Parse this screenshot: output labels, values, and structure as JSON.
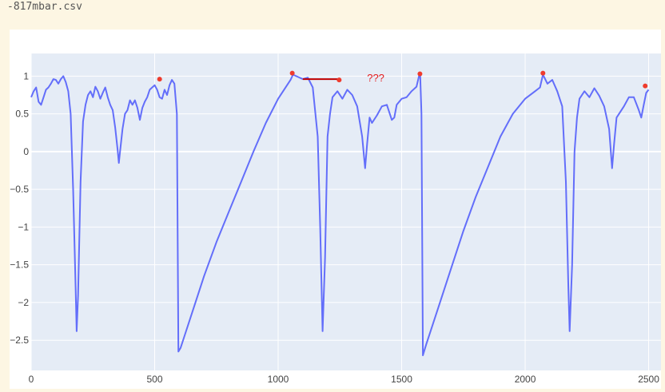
{
  "file": {
    "name": "-817mbar.csv"
  },
  "chart_data": {
    "type": "line",
    "title": "",
    "xlabel": "",
    "ylabel": "",
    "xlim": [
      0,
      2550
    ],
    "ylim": [
      -2.9,
      1.3
    ],
    "x_ticks": [
      0,
      500,
      1000,
      1500,
      2000,
      2500
    ],
    "y_ticks": [
      -2.5,
      -2,
      -1.5,
      -1,
      -0.5,
      0,
      0.5,
      1
    ],
    "grid": true,
    "colors": {
      "line": "#636efa",
      "marker": "#ef3b2c",
      "segment": "#c00000",
      "annotation": "#e31a1c",
      "plot_bg": "#e5ecf6"
    },
    "series": [
      {
        "values": [
          [
            0,
            0.72
          ],
          [
            10,
            0.8
          ],
          [
            20,
            0.85
          ],
          [
            30,
            0.66
          ],
          [
            40,
            0.62
          ],
          [
            50,
            0.72
          ],
          [
            60,
            0.82
          ],
          [
            70,
            0.85
          ],
          [
            80,
            0.9
          ],
          [
            90,
            0.96
          ],
          [
            100,
            0.95
          ],
          [
            110,
            0.9
          ],
          [
            120,
            0.96
          ],
          [
            130,
            1.0
          ],
          [
            140,
            0.92
          ],
          [
            150,
            0.8
          ],
          [
            160,
            0.5
          ],
          [
            170,
            -0.5
          ],
          [
            180,
            -1.8
          ],
          [
            184,
            -2.38
          ],
          [
            190,
            -1.9
          ],
          [
            200,
            -0.4
          ],
          [
            210,
            0.4
          ],
          [
            220,
            0.62
          ],
          [
            230,
            0.75
          ],
          [
            240,
            0.8
          ],
          [
            250,
            0.72
          ],
          [
            260,
            0.86
          ],
          [
            270,
            0.8
          ],
          [
            280,
            0.7
          ],
          [
            290,
            0.78
          ],
          [
            300,
            0.85
          ],
          [
            310,
            0.72
          ],
          [
            320,
            0.62
          ],
          [
            330,
            0.55
          ],
          [
            340,
            0.32
          ],
          [
            350,
            0.02
          ],
          [
            355,
            -0.15
          ],
          [
            360,
            0.0
          ],
          [
            370,
            0.3
          ],
          [
            380,
            0.5
          ],
          [
            390,
            0.55
          ],
          [
            400,
            0.68
          ],
          [
            410,
            0.62
          ],
          [
            420,
            0.68
          ],
          [
            430,
            0.58
          ],
          [
            440,
            0.42
          ],
          [
            450,
            0.58
          ],
          [
            460,
            0.66
          ],
          [
            470,
            0.72
          ],
          [
            480,
            0.82
          ],
          [
            490,
            0.85
          ],
          [
            500,
            0.88
          ],
          [
            510,
            0.82
          ],
          [
            520,
            0.72
          ],
          [
            530,
            0.7
          ],
          [
            540,
            0.82
          ],
          [
            550,
            0.75
          ],
          [
            560,
            0.88
          ],
          [
            570,
            0.95
          ],
          [
            580,
            0.9
          ],
          [
            590,
            0.5
          ],
          [
            596,
            -2.65
          ],
          [
            605,
            -2.6
          ],
          [
            620,
            -2.45
          ],
          [
            650,
            -2.15
          ],
          [
            700,
            -1.65
          ],
          [
            750,
            -1.2
          ],
          [
            800,
            -0.8
          ],
          [
            850,
            -0.4
          ],
          [
            900,
            0.0
          ],
          [
            950,
            0.38
          ],
          [
            1000,
            0.7
          ],
          [
            1050,
            0.95
          ],
          [
            1060,
            1.02
          ],
          [
            1100,
            0.96
          ],
          [
            1120,
            0.98
          ],
          [
            1140,
            0.85
          ],
          [
            1160,
            0.2
          ],
          [
            1170,
            -1.0
          ],
          [
            1180,
            -2.38
          ],
          [
            1190,
            -1.4
          ],
          [
            1200,
            0.2
          ],
          [
            1210,
            0.5
          ],
          [
            1220,
            0.72
          ],
          [
            1240,
            0.8
          ],
          [
            1260,
            0.7
          ],
          [
            1280,
            0.82
          ],
          [
            1300,
            0.75
          ],
          [
            1320,
            0.6
          ],
          [
            1340,
            0.2
          ],
          [
            1352,
            -0.22
          ],
          [
            1360,
            0.1
          ],
          [
            1370,
            0.45
          ],
          [
            1380,
            0.38
          ],
          [
            1400,
            0.48
          ],
          [
            1420,
            0.6
          ],
          [
            1440,
            0.62
          ],
          [
            1460,
            0.42
          ],
          [
            1470,
            0.45
          ],
          [
            1480,
            0.62
          ],
          [
            1500,
            0.7
          ],
          [
            1520,
            0.72
          ],
          [
            1540,
            0.8
          ],
          [
            1560,
            0.86
          ],
          [
            1570,
            1.0
          ],
          [
            1575,
            1.02
          ],
          [
            1580,
            0.5
          ],
          [
            1586,
            -2.7
          ],
          [
            1600,
            -2.55
          ],
          [
            1650,
            -2.05
          ],
          [
            1700,
            -1.55
          ],
          [
            1750,
            -1.05
          ],
          [
            1800,
            -0.6
          ],
          [
            1850,
            -0.2
          ],
          [
            1900,
            0.2
          ],
          [
            1950,
            0.5
          ],
          [
            2000,
            0.7
          ],
          [
            2040,
            0.8
          ],
          [
            2060,
            0.85
          ],
          [
            2072,
            1.02
          ],
          [
            2090,
            0.9
          ],
          [
            2110,
            0.95
          ],
          [
            2130,
            0.8
          ],
          [
            2150,
            0.6
          ],
          [
            2165,
            -0.4
          ],
          [
            2175,
            -1.8
          ],
          [
            2180,
            -2.38
          ],
          [
            2190,
            -1.5
          ],
          [
            2200,
            0.0
          ],
          [
            2210,
            0.45
          ],
          [
            2220,
            0.7
          ],
          [
            2240,
            0.8
          ],
          [
            2260,
            0.72
          ],
          [
            2280,
            0.84
          ],
          [
            2300,
            0.74
          ],
          [
            2320,
            0.6
          ],
          [
            2340,
            0.3
          ],
          [
            2352,
            -0.22
          ],
          [
            2360,
            0.1
          ],
          [
            2370,
            0.45
          ],
          [
            2380,
            0.5
          ],
          [
            2400,
            0.6
          ],
          [
            2420,
            0.72
          ],
          [
            2440,
            0.72
          ],
          [
            2460,
            0.55
          ],
          [
            2470,
            0.45
          ],
          [
            2480,
            0.62
          ],
          [
            2490,
            0.78
          ],
          [
            2500,
            0.82
          ]
        ]
      },
      {
        "type": "markers",
        "values": [
          [
            520,
            0.96
          ],
          [
            1057,
            1.04
          ],
          [
            1247,
            0.95
          ],
          [
            1574,
            1.03
          ],
          [
            2072,
            1.04
          ],
          [
            2486,
            0.87
          ]
        ]
      },
      {
        "type": "segment",
        "values": [
          [
            1100,
            0.96
          ],
          [
            1247,
            0.96
          ]
        ]
      }
    ],
    "annotations": [
      {
        "text": "???",
        "x": 1395,
        "y": 0.93
      }
    ]
  }
}
